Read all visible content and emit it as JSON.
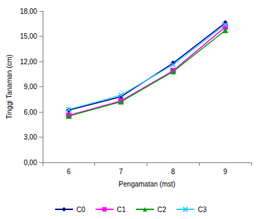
{
  "chart_data": {
    "type": "line",
    "x_label": "Pengamatan (mst)",
    "y_label": "Tinggi Tanaman (cm)",
    "categories": [
      "6",
      "7",
      "8",
      "9"
    ],
    "series": [
      {
        "name": "C0",
        "color": "#00008b",
        "marker": "diamond",
        "values": [
          6.2,
          7.8,
          11.8,
          16.6
        ]
      },
      {
        "name": "C1",
        "color": "#ff00ff",
        "marker": "square",
        "values": [
          5.6,
          7.3,
          10.9,
          16.1
        ]
      },
      {
        "name": "C2",
        "color": "#00a000",
        "marker": "triangle",
        "values": [
          5.5,
          7.2,
          10.8,
          15.7
        ]
      },
      {
        "name": "C3",
        "color": "#33ccff",
        "marker": "x",
        "values": [
          6.3,
          8.0,
          11.6,
          16.4
        ]
      }
    ],
    "ylim": [
      0,
      18
    ],
    "yticks": [
      {
        "value": 0,
        "label": "0,00"
      },
      {
        "value": 3,
        "label": "3,00"
      },
      {
        "value": 6,
        "label": "6,00"
      },
      {
        "value": 9,
        "label": "9,00"
      },
      {
        "value": 12,
        "label": "12,00"
      },
      {
        "value": 15,
        "label": "15,00"
      },
      {
        "value": 18,
        "label": "18,00"
      }
    ],
    "grid": false,
    "legend": "bottom"
  }
}
